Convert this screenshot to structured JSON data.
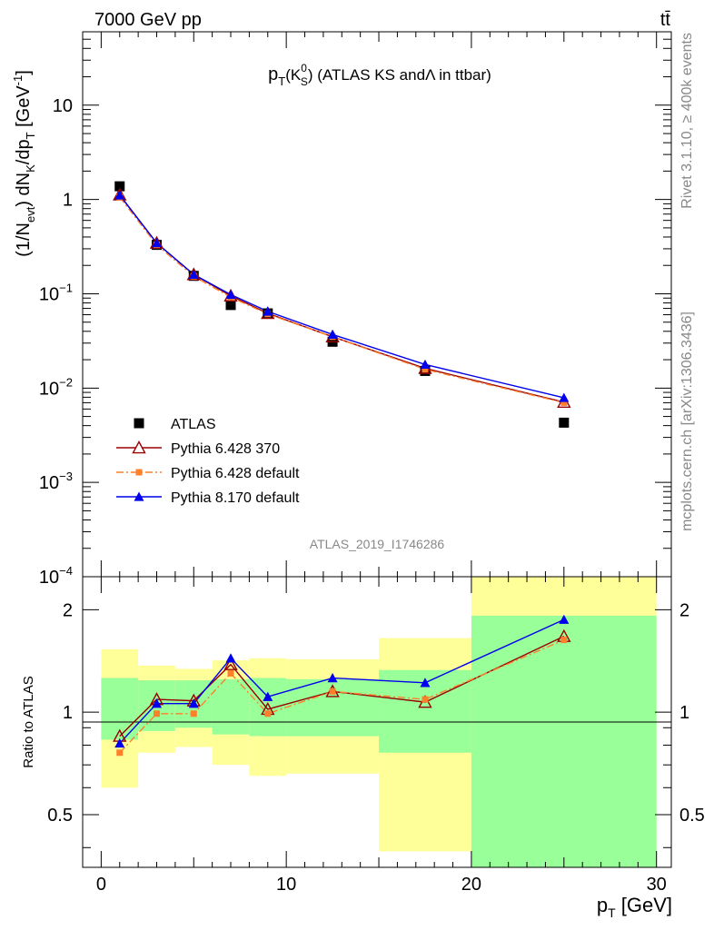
{
  "header": {
    "energy_label": "7000 GeV pp",
    "process_label": "tt̄"
  },
  "side_labels": {
    "rivet": "Rivet 3.1.10, ≥ 400k events",
    "mcplots": "mcplots.cern.ch [arXiv:1306.3436]"
  },
  "watermark": "ATLAS_2019_I1746286",
  "colors": {
    "atlas": "#000000",
    "py6_370": "#990000",
    "py6_def": "#ff7f2a",
    "py8_def": "#0000ee",
    "band_green": "#99ff99",
    "band_yellow": "#ffff99"
  },
  "chart_data": [
    {
      "type": "line",
      "panel": "main",
      "title": "p_T(K^0_S) (ATLAS KS and Λ in ttbar)",
      "ylabel": "(1/N_evt) dN_K/dp_T [GeV^-1]",
      "yscale": "log",
      "ylim": [
        0.0001,
        60
      ],
      "xlim": [
        -1,
        30.8
      ],
      "ytick_labels": [
        "10^-4",
        "10^-3",
        "10^-2",
        "10^-1",
        "1",
        "10"
      ],
      "legend_position": "lower-left",
      "x": [
        1,
        3,
        5,
        7,
        9,
        12.5,
        17.5,
        25
      ],
      "series": [
        {
          "name": "ATLAS",
          "marker": "square",
          "values": [
            1.38,
            0.33,
            0.155,
            0.076,
            0.062,
            0.031,
            0.0152,
            0.0043
          ]
        },
        {
          "name": "Pythia 6.428 370",
          "marker": "open-triangle",
          "line": "solid",
          "values": [
            1.12,
            0.345,
            0.16,
            0.095,
            0.062,
            0.035,
            0.0162,
            0.0071
          ]
        },
        {
          "name": "Pythia 6.428 default",
          "marker": "small-square",
          "line": "dash-dot",
          "values": [
            1.06,
            0.33,
            0.153,
            0.092,
            0.061,
            0.035,
            0.0158,
            0.007
          ]
        },
        {
          "name": "Pythia 8.170 default",
          "marker": "filled-triangle",
          "line": "solid",
          "values": [
            1.11,
            0.345,
            0.16,
            0.098,
            0.065,
            0.037,
            0.0178,
            0.0079
          ]
        }
      ]
    },
    {
      "type": "line",
      "panel": "ratio",
      "xlabel": "p_T [GeV]",
      "ylabel": "Ratio to ATLAS",
      "yscale": "log",
      "ylim": [
        0.35,
        2.5
      ],
      "ytick_labels": [
        "0.5",
        "1",
        "2"
      ],
      "xtick_labels": [
        "0",
        "10",
        "20",
        "30"
      ],
      "bins": [
        [
          0,
          2
        ],
        [
          2,
          4
        ],
        [
          4,
          6
        ],
        [
          6,
          8
        ],
        [
          8,
          10
        ],
        [
          10,
          15
        ],
        [
          15,
          20
        ],
        [
          20,
          30
        ]
      ],
      "band_inner": [
        [
          0.83,
          1.26
        ],
        [
          0.88,
          1.24
        ],
        [
          0.9,
          1.24
        ],
        [
          0.86,
          1.25
        ],
        [
          0.85,
          1.26
        ],
        [
          0.85,
          1.25
        ],
        [
          0.76,
          1.33
        ],
        [
          0.35,
          1.92
        ]
      ],
      "band_outer": [
        [
          0.6,
          1.53
        ],
        [
          0.76,
          1.37
        ],
        [
          0.79,
          1.34
        ],
        [
          0.7,
          1.42
        ],
        [
          0.65,
          1.44
        ],
        [
          0.66,
          1.43
        ],
        [
          0.39,
          1.65
        ],
        [
          0.35,
          2.5
        ]
      ],
      "x": [
        1,
        3,
        5,
        7,
        9,
        12.5,
        17.5,
        25
      ],
      "series": [
        {
          "name": "Pythia 6.428 370",
          "values": [
            0.85,
            1.09,
            1.08,
            1.38,
            1.02,
            1.15,
            1.07,
            1.67
          ]
        },
        {
          "name": "Pythia 6.428 default",
          "values": [
            0.76,
            0.99,
            0.99,
            1.3,
            0.99,
            1.15,
            1.09,
            1.63
          ]
        },
        {
          "name": "Pythia 8.170 default",
          "values": [
            0.81,
            1.06,
            1.06,
            1.44,
            1.11,
            1.26,
            1.22,
            1.87
          ]
        }
      ]
    }
  ]
}
